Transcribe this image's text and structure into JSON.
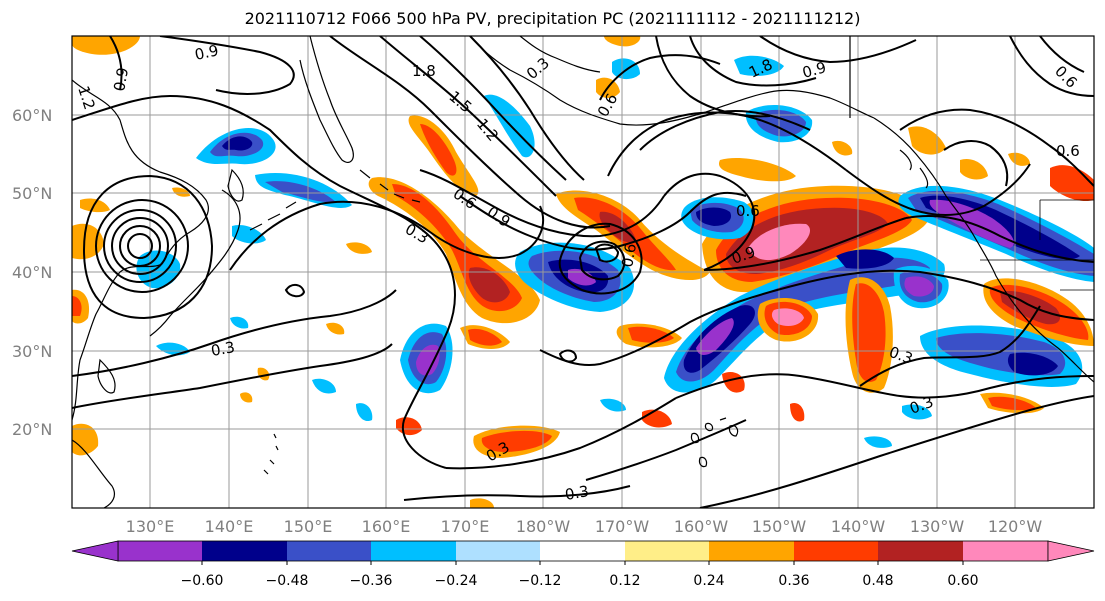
{
  "title": "2021110712 F066 500 hPa PV, precipitation PC (2021111112 - 2021111212)",
  "map": {
    "lat_labels": [
      "60°N",
      "50°N",
      "40°N",
      "30°N",
      "20°N"
    ],
    "lat_values": [
      60,
      50,
      40,
      30,
      20
    ],
    "lon_labels": [
      "130°E",
      "140°E",
      "150°E",
      "160°E",
      "170°E",
      "180°W",
      "170°W",
      "160°W",
      "150°W",
      "140°W",
      "130°W",
      "120°W"
    ],
    "lon_values": [
      130,
      140,
      150,
      160,
      170,
      180,
      190,
      200,
      210,
      220,
      230,
      240
    ],
    "lon_range": [
      120,
      250
    ],
    "lat_range": [
      10,
      70
    ],
    "grid": true,
    "contour_labels": [
      "0.9",
      "0.9",
      "1.2",
      "1.8",
      "1.5",
      "1.2",
      "0.6",
      "0.9",
      "0.3",
      "0.6",
      "0.3",
      "1.8",
      "0.9",
      "0.6",
      "0.9",
      "0.6",
      "0.6",
      "0.3",
      "0.3",
      "0.3",
      "0.3",
      "0.3",
      "0.6"
    ]
  },
  "colorbar": {
    "tick_labels": [
      "−0.60",
      "−0.48",
      "−0.36",
      "−0.24",
      "−0.12",
      "0.12",
      "0.24",
      "0.36",
      "0.48",
      "0.60"
    ],
    "levels": [
      -0.72,
      -0.6,
      -0.48,
      -0.36,
      -0.24,
      -0.12,
      0.12,
      0.24,
      0.36,
      0.48,
      0.6,
      0.72
    ],
    "colors": [
      "#9932cc",
      "#00008b",
      "#3a50c8",
      "#00bfff",
      "#aee0ff",
      "#ffffff",
      "#ffee88",
      "#ffa500",
      "#ff3c00",
      "#b22222",
      "#ff88bb"
    ]
  },
  "chart_data": {
    "type": "heatmap",
    "title": "2021110712 F066 500 hPa PV, precipitation PC (2021111112 - 2021111212)",
    "variable": "precipitation PC (shaded) and 500 hPa PV (contours)",
    "xlabel": "",
    "ylabel": "",
    "xlim_lon": [
      120,
      250
    ],
    "ylim_lat": [
      10,
      70
    ],
    "color_levels": [
      -0.72,
      -0.6,
      -0.48,
      -0.36,
      -0.24,
      -0.12,
      0.12,
      0.24,
      0.36,
      0.48,
      0.6,
      0.72
    ],
    "contour_levels": [
      0.3,
      0.6,
      0.9,
      1.2,
      1.5,
      1.8
    ],
    "features": [
      {
        "lon": 140,
        "lat": 57,
        "value": -0.6
      },
      {
        "lon": 147,
        "lat": 52,
        "value": -0.3
      },
      {
        "lon": 172,
        "lat": 38,
        "value": 0.5
      },
      {
        "lon": 166,
        "lat": 46,
        "value": 0.4
      },
      {
        "lon": 185,
        "lat": 39,
        "value": -0.6
      },
      {
        "lon": 191,
        "lat": 43,
        "value": 0.5
      },
      {
        "lon": 165,
        "lat": 29,
        "value": -0.6
      },
      {
        "lon": 180,
        "lat": 19,
        "value": 0.5
      },
      {
        "lon": 202,
        "lat": 30,
        "value": -0.65
      },
      {
        "lon": 213,
        "lat": 44,
        "value": 0.6
      },
      {
        "lon": 209,
        "lat": 33,
        "value": 0.65
      },
      {
        "lon": 220,
        "lat": 37,
        "value": -0.65
      },
      {
        "lon": 236,
        "lat": 45,
        "value": -0.65
      },
      {
        "lon": 239,
        "lat": 34,
        "value": 0.5
      },
      {
        "lon": 234,
        "lat": 29,
        "value": -0.5
      },
      {
        "lon": 226,
        "lat": 33,
        "value": 0.45
      },
      {
        "lon": 208,
        "lat": 59,
        "value": -0.5
      },
      {
        "lon": 203,
        "lat": 46,
        "value": -0.6
      }
    ]
  }
}
